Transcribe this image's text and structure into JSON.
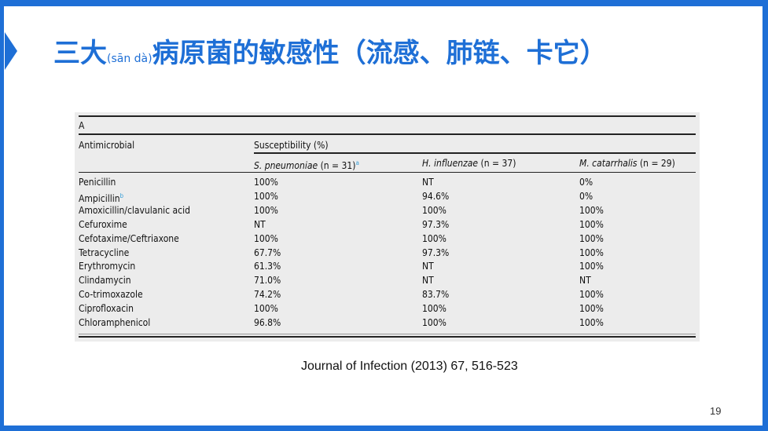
{
  "slide": {
    "title_main_1": "三大",
    "title_pinyin": "(sān dà)",
    "title_main_2": "病原菌的敏感性（流感、肺链、卡它）",
    "citation": "Journal of Infection (2013) 67, 516-523",
    "page_number": "19",
    "accent_color": "#1e6fd6"
  },
  "table": {
    "label": "A",
    "col_header": "Antimicrobial",
    "group_header": "Susceptibility (%)",
    "organisms": [
      {
        "name": "S. pneumoniae",
        "n": "(n = 31)",
        "sup": "a"
      },
      {
        "name": "H. influenzae",
        "n": "(n = 37)",
        "sup": ""
      },
      {
        "name": "M. catarrhalis",
        "n": "(n = 29)",
        "sup": ""
      }
    ],
    "rows": [
      {
        "drug": "Penicillin",
        "sup": "",
        "v": [
          "100%",
          "NT",
          "0%"
        ]
      },
      {
        "drug": "Ampicillin",
        "sup": "b",
        "v": [
          "100%",
          "94.6%",
          "0%"
        ]
      },
      {
        "drug": "Amoxicillin/clavulanic acid",
        "sup": "",
        "v": [
          "100%",
          "100%",
          "100%"
        ]
      },
      {
        "drug": "Cefuroxime",
        "sup": "",
        "v": [
          "NT",
          "97.3%",
          "100%"
        ]
      },
      {
        "drug": "Cefotaxime/Ceftriaxone",
        "sup": "",
        "v": [
          "100%",
          "100%",
          "100%"
        ]
      },
      {
        "drug": "Tetracycline",
        "sup": "",
        "v": [
          "67.7%",
          "97.3%",
          "100%"
        ]
      },
      {
        "drug": "Erythromycin",
        "sup": "",
        "v": [
          "61.3%",
          "NT",
          "100%"
        ]
      },
      {
        "drug": "Clindamycin",
        "sup": "",
        "v": [
          "71.0%",
          "NT",
          "NT"
        ]
      },
      {
        "drug": "Co-trimoxazole",
        "sup": "",
        "v": [
          "74.2%",
          "83.7%",
          "100%"
        ]
      },
      {
        "drug": "Ciprofloxacin",
        "sup": "",
        "v": [
          "100%",
          "100%",
          "100%"
        ]
      },
      {
        "drug": "Chloramphenicol",
        "sup": "",
        "v": [
          "96.8%",
          "100%",
          "100%"
        ]
      }
    ]
  }
}
